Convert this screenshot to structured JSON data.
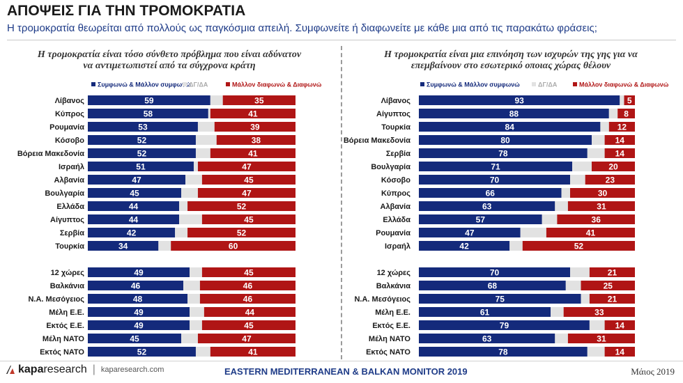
{
  "header": {
    "title": "ΑΠΟΨΕΙΣ ΓΙΑ ΤΗΝ ΤΡΟΜΟΚΡΑΤΙΑ",
    "subtitle": "Η τρομοκρατία θεωρείται από πολλούς ως παγκόσμια απειλή. Συμφωνείτε ή διαφωνείτε με κάθε μια από τις παρακάτω φράσεις;"
  },
  "colors": {
    "agree": "#142a7b",
    "dk": "#e2e2e2",
    "disagree": "#b01515"
  },
  "chart_data": [
    {
      "type": "bar",
      "stacked": true,
      "orientation": "horizontal",
      "title_lines": [
        "Η τρομοκρατία είναι τόσο σύνθετο πρόβλημα που είναι αδύνατον",
        "να αντιμετωπιστεί από τα σύγχρονα κράτη"
      ],
      "legend": [
        "Συμφωνώ & Μάλλον συμφωνώ",
        "ΔΓ/ΔΑ",
        "Μάλλον διαφωνώ & Διαφωνώ"
      ],
      "legend_position": "top",
      "groups": [
        {
          "categories": [
            "Λίβανος",
            "Κύπρος",
            "Ρουμανία",
            "Κόσοβο",
            "Βόρεια Μακεδονία",
            "Ισραήλ",
            "Αλβανία",
            "Βουλγαρία",
            "Ελλάδα",
            "Αίγυπτος",
            "Σερβία",
            "Τουρκία"
          ],
          "agree": [
            59,
            58,
            53,
            52,
            52,
            51,
            47,
            45,
            44,
            44,
            42,
            34
          ],
          "disagree": [
            35,
            41,
            39,
            38,
            41,
            47,
            45,
            47,
            52,
            45,
            52,
            60
          ]
        },
        {
          "categories": [
            "12 χώρες",
            "Βαλκάνια",
            "Ν.Α. Μεσόγειος",
            "Μέλη Ε.Ε.",
            "Εκτός Ε.Ε.",
            "Μέλη ΝΑΤΟ",
            "Εκτός ΝΑΤΟ"
          ],
          "agree": [
            49,
            46,
            48,
            49,
            49,
            45,
            52
          ],
          "disagree": [
            45,
            46,
            46,
            44,
            45,
            47,
            41
          ]
        }
      ]
    },
    {
      "type": "bar",
      "stacked": true,
      "orientation": "horizontal",
      "title_lines": [
        "Η τρομοκρατία είναι μια επινόηση των ισχυρών της γης για να",
        "επεμβαίνουν στο εσωτερικό οποιας χώρας θέλουν"
      ],
      "legend": [
        "Συμφωνώ & Μάλλον συμφωνώ",
        "ΔΓ/ΔΑ",
        "Μάλλον διαφωνώ & Διαφωνώ"
      ],
      "legend_position": "top",
      "groups": [
        {
          "categories": [
            "Λίβανος",
            "Αίγυπτος",
            "Τουρκία",
            "Βόρεια Μακεδονία",
            "Σερβία",
            "Βουλγαρία",
            "Κόσοβο",
            "Κύπρος",
            "Αλβανία",
            "Ελλάδα",
            "Ρουμανία",
            "Ισραήλ"
          ],
          "agree": [
            93,
            88,
            84,
            80,
            78,
            71,
            70,
            66,
            63,
            57,
            47,
            42
          ],
          "disagree": [
            5,
            8,
            12,
            14,
            14,
            20,
            23,
            30,
            31,
            36,
            41,
            52
          ]
        },
        {
          "categories": [
            "12 χώρες",
            "Βαλκάνια",
            "Ν.Α. Μεσόγειος",
            "Μέλη Ε.Ε.",
            "Εκτός Ε.Ε.",
            "Μέλη ΝΑΤΟ",
            "Εκτός ΝΑΤΟ"
          ],
          "agree": [
            70,
            68,
            75,
            61,
            79,
            63,
            78
          ],
          "disagree": [
            21,
            25,
            21,
            33,
            14,
            31,
            14
          ]
        }
      ]
    }
  ],
  "footer": {
    "logo_brand": "kapa",
    "logo_suffix": "research",
    "logo_separator": "|",
    "url": "kaparesearch.com",
    "monitor": "EASTERN MEDITERRANEAN & BALKAN MONITOR 2019",
    "date": "Μάιος 2019"
  }
}
